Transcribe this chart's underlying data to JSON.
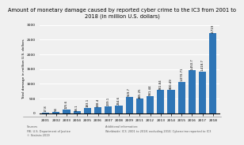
{
  "title": "Amount of monetary damage caused by reported cyber crime to the IC3 from 2001 to\n2018 (in million U.S. dollars)",
  "years": [
    "2001",
    "2002",
    "2003",
    "2004",
    "2005",
    "2006",
    "2007",
    "2008",
    "2009",
    "2011",
    "2012",
    "2013",
    "2014",
    "2015",
    "2016",
    "2017",
    "2018"
  ],
  "values": [
    17.8,
    54,
    125.6,
    68.1,
    183.1,
    198.4,
    239.1,
    264.6,
    559.7,
    485.25,
    581.44,
    781.84,
    800.49,
    1070.71,
    1450.7,
    1418.7,
    2719
  ],
  "bar_color": "#2e75b6",
  "bar_labels": [
    "17.8",
    "54",
    "125.6",
    "68.1",
    "183.1",
    "198.4",
    "239.1",
    "264.6",
    "559.7",
    "485.25",
    "581.44",
    "781.84",
    "800.49",
    "1,070.71",
    "1,450.7",
    "1,418.7",
    "2,719"
  ],
  "ylabel": "Total damage in million U.S. dollars",
  "ylim": [
    0,
    3000
  ],
  "yticks": [
    0,
    500,
    1000,
    1500,
    2000,
    2500,
    3000
  ],
  "background_color": "#f0f0f0",
  "title_fontsize": 4.8,
  "label_fontsize": 2.8,
  "tick_fontsize": 3.2,
  "ylabel_fontsize": 3.2,
  "sources_text": "Sources\nFBI, U.S. Department of Justice\n© Statista 2019",
  "add_info_text": "Additional information:\nWorldwide; IC3; 2001 to 2018; excluding 2010; Cybercrime reported to IC3"
}
